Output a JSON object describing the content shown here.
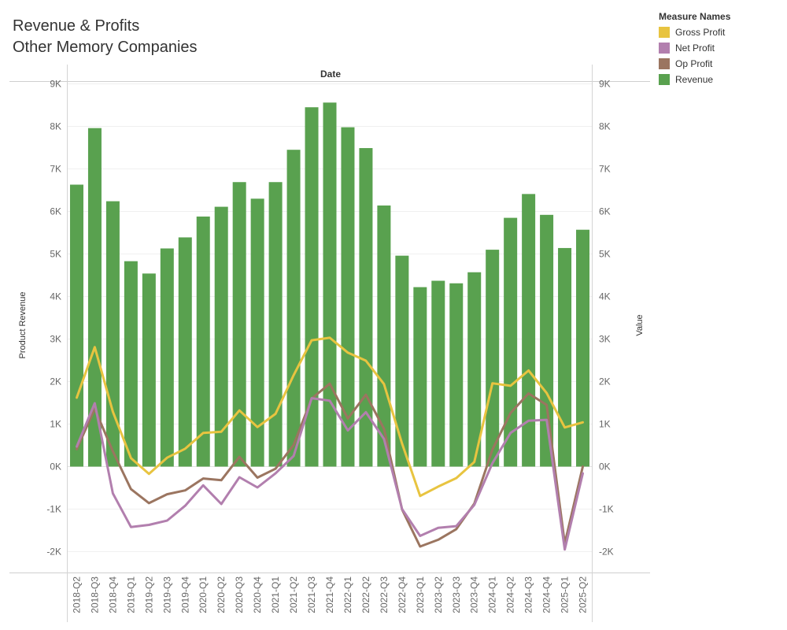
{
  "title": {
    "line1": "Revenue & Profits",
    "line2": "Other Memory Companies"
  },
  "legend": {
    "title": "Measure Names",
    "items": [
      {
        "label": "Gross Profit",
        "color": "#E8C440"
      },
      {
        "label": "Net Profit",
        "color": "#B27FAE"
      },
      {
        "label": "Op Profit",
        "color": "#9B7560"
      },
      {
        "label": "Revenue",
        "color": "#59A14F"
      }
    ]
  },
  "chart_data": {
    "type": "bar+line",
    "header": "Date",
    "ylabel_left": "Product Revenue",
    "ylabel_right": "Value",
    "ylim": [
      -2300,
      9000
    ],
    "y_ticks": [
      -2000,
      -1000,
      0,
      1000,
      2000,
      3000,
      4000,
      5000,
      6000,
      7000,
      8000,
      9000
    ],
    "y_tick_labels": [
      "-2K",
      "-1K",
      "0K",
      "1K",
      "2K",
      "3K",
      "4K",
      "5K",
      "6K",
      "7K",
      "8K",
      "9K"
    ],
    "categories": [
      "2018-Q2",
      "2018-Q3",
      "2018-Q4",
      "2019-Q1",
      "2019-Q2",
      "2019-Q3",
      "2019-Q4",
      "2020-Q1",
      "2020-Q2",
      "2020-Q3",
      "2020-Q4",
      "2021-Q1",
      "2021-Q2",
      "2021-Q3",
      "2021-Q4",
      "2022-Q1",
      "2022-Q2",
      "2022-Q3",
      "2022-Q4",
      "2023-Q1",
      "2023-Q2",
      "2023-Q3",
      "2023-Q4",
      "2024-Q1",
      "2024-Q2",
      "2024-Q3",
      "2024-Q4",
      "2025-Q1",
      "2025-Q2"
    ],
    "bars": {
      "name": "Revenue",
      "color": "#59A14F",
      "values": [
        6630,
        7960,
        6240,
        4830,
        4540,
        5130,
        5390,
        5880,
        6110,
        6690,
        6300,
        6690,
        7450,
        8450,
        8560,
        7980,
        7490,
        6140,
        4960,
        4220,
        4370,
        4310,
        4570,
        5100,
        5850,
        6410,
        5920,
        5140,
        5570
      ]
    },
    "series": [
      {
        "name": "Gross Profit",
        "color": "#E8C440",
        "values": [
          1620,
          2810,
          1290,
          200,
          -170,
          210,
          420,
          790,
          820,
          1320,
          930,
          1240,
          2150,
          2970,
          3030,
          2680,
          2490,
          1940,
          540,
          -690,
          -470,
          -270,
          110,
          1960,
          1900,
          2260,
          1730,
          920,
          1040
        ]
      },
      {
        "name": "Op Profit",
        "color": "#9B7560",
        "values": [
          410,
          1360,
          360,
          -530,
          -860,
          -650,
          -560,
          -280,
          -320,
          230,
          -260,
          -50,
          510,
          1600,
          1950,
          1130,
          1690,
          890,
          -1010,
          -1880,
          -1720,
          -1470,
          -870,
          400,
          1260,
          1720,
          1450,
          -1810,
          0
        ]
      },
      {
        "name": "Net Profit",
        "color": "#B27FAE",
        "values": [
          470,
          1490,
          -630,
          -1420,
          -1370,
          -1270,
          -920,
          -440,
          -880,
          -250,
          -490,
          -160,
          250,
          1610,
          1550,
          850,
          1280,
          650,
          -1000,
          -1630,
          -1440,
          -1400,
          -900,
          80,
          790,
          1080,
          1100,
          -1950,
          -160
        ]
      }
    ]
  }
}
